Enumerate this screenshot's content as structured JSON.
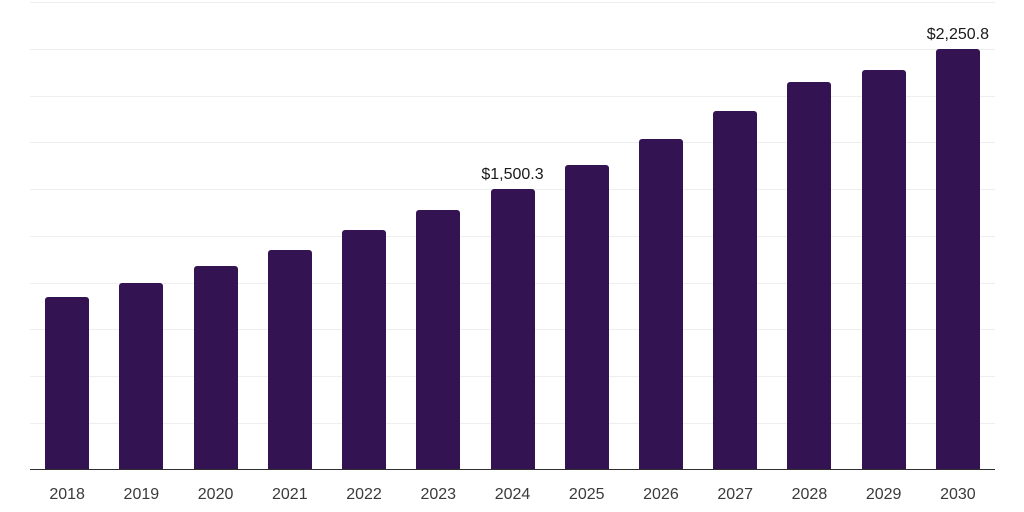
{
  "chart_data": {
    "type": "bar",
    "title": "",
    "xlabel": "",
    "ylabel": "",
    "categories": [
      "2018",
      "2019",
      "2020",
      "2021",
      "2022",
      "2023",
      "2024",
      "2025",
      "2026",
      "2027",
      "2028",
      "2029",
      "2030"
    ],
    "values": [
      920,
      1000,
      1087,
      1176,
      1281,
      1388,
      1500.3,
      1627,
      1768,
      1919,
      2074,
      2139,
      2250.8
    ],
    "data_labels": [
      {
        "category": "2024",
        "text": "$1,500.3"
      },
      {
        "category": "2030",
        "text": "$2,250.8"
      }
    ],
    "ylim": [
      0,
      2500
    ],
    "gridline_step": 250,
    "grid": "horizontal",
    "legend": "none",
    "bar_color": "#341352",
    "gridline_color": "#eeeeee",
    "axis_line_color": "#2f2f2f",
    "data_label_color": "#1a1a1a",
    "tick_label_color": "#3a3a3a"
  }
}
